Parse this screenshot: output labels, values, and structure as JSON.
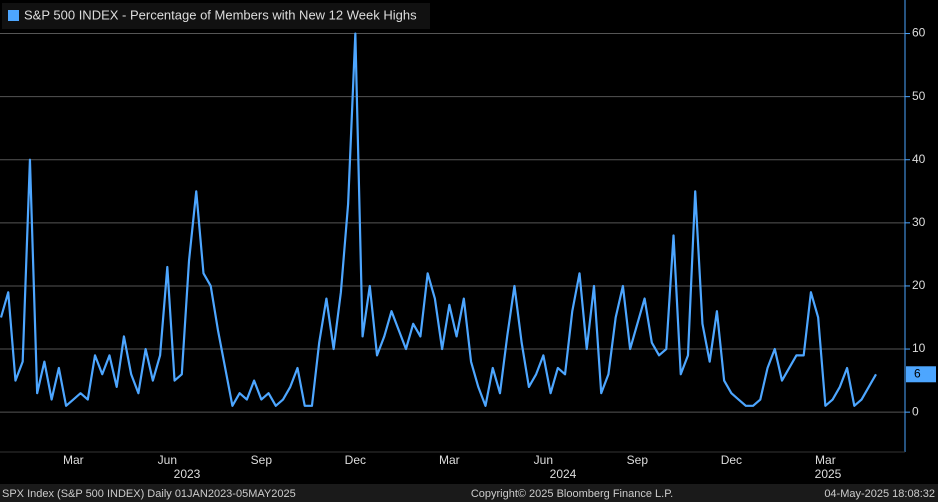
{
  "chart_data": {
    "type": "line",
    "legend_title": "S&P 500 INDEX - Percentage of Members with New 12 Week Highs",
    "categories": [
      null,
      null,
      null,
      null,
      null,
      null,
      null,
      null,
      null,
      null,
      "Mar",
      null,
      null,
      null,
      null,
      null,
      null,
      null,
      null,
      null,
      null,
      null,
      null,
      "Jun",
      null,
      null,
      null,
      null,
      null,
      null,
      null,
      null,
      null,
      null,
      null,
      null,
      "Sep",
      null,
      null,
      null,
      null,
      null,
      null,
      null,
      null,
      null,
      null,
      null,
      null,
      "Dec",
      null,
      null,
      null,
      null,
      null,
      null,
      null,
      null,
      null,
      null,
      null,
      null,
      "Mar",
      null,
      null,
      null,
      null,
      null,
      null,
      null,
      null,
      null,
      null,
      null,
      null,
      "Jun",
      null,
      null,
      null,
      null,
      null,
      null,
      null,
      null,
      null,
      null,
      null,
      null,
      "Sep",
      null,
      null,
      null,
      null,
      null,
      null,
      null,
      null,
      null,
      null,
      null,
      null,
      "Dec",
      null,
      null,
      null,
      null,
      null,
      null,
      null,
      null,
      null,
      null,
      null,
      null,
      "Mar",
      null,
      null,
      null,
      null,
      null,
      null,
      null
    ],
    "year_labels": [
      "2023",
      "2024",
      "2025"
    ],
    "series": [
      {
        "name": "S&P 500 INDEX - Percentage of Members with New 12 Week Highs",
        "color": "#4da6ff",
        "values": [
          15,
          19,
          5,
          8,
          40,
          3,
          8,
          2,
          7,
          1,
          2,
          3,
          2,
          9,
          6,
          9,
          4,
          12,
          6,
          3,
          10,
          5,
          9,
          23,
          5,
          6,
          24,
          35,
          22,
          20,
          13,
          7,
          1,
          3,
          2,
          5,
          2,
          3,
          1,
          2,
          4,
          7,
          1,
          1,
          11,
          18,
          10,
          19,
          33,
          60,
          12,
          20,
          9,
          12,
          16,
          13,
          10,
          14,
          12,
          22,
          18,
          10,
          17,
          12,
          18,
          8,
          4,
          1,
          7,
          3,
          12,
          20,
          11,
          4,
          6,
          9,
          3,
          7,
          6,
          16,
          22,
          10,
          20,
          3,
          6,
          15,
          20,
          10,
          14,
          18,
          11,
          9,
          10,
          28,
          6,
          9,
          35,
          14,
          8,
          16,
          5,
          3,
          2,
          1,
          1,
          2,
          7,
          10,
          5,
          7,
          9,
          9,
          19,
          15,
          1,
          2,
          4,
          7,
          1,
          2,
          4,
          6
        ]
      }
    ],
    "ylim": [
      -6,
      65
    ],
    "yticks": [
      0,
      10,
      20,
      30,
      40,
      50,
      60
    ],
    "grid": true,
    "footer_left": "SPX Index (S&P 500 INDEX)  Daily 01JAN2023-05MAY2025",
    "footer_center": "Copyright© 2025 Bloomberg Finance L.P.",
    "footer_right": "04-May-2025 18:08:32"
  }
}
